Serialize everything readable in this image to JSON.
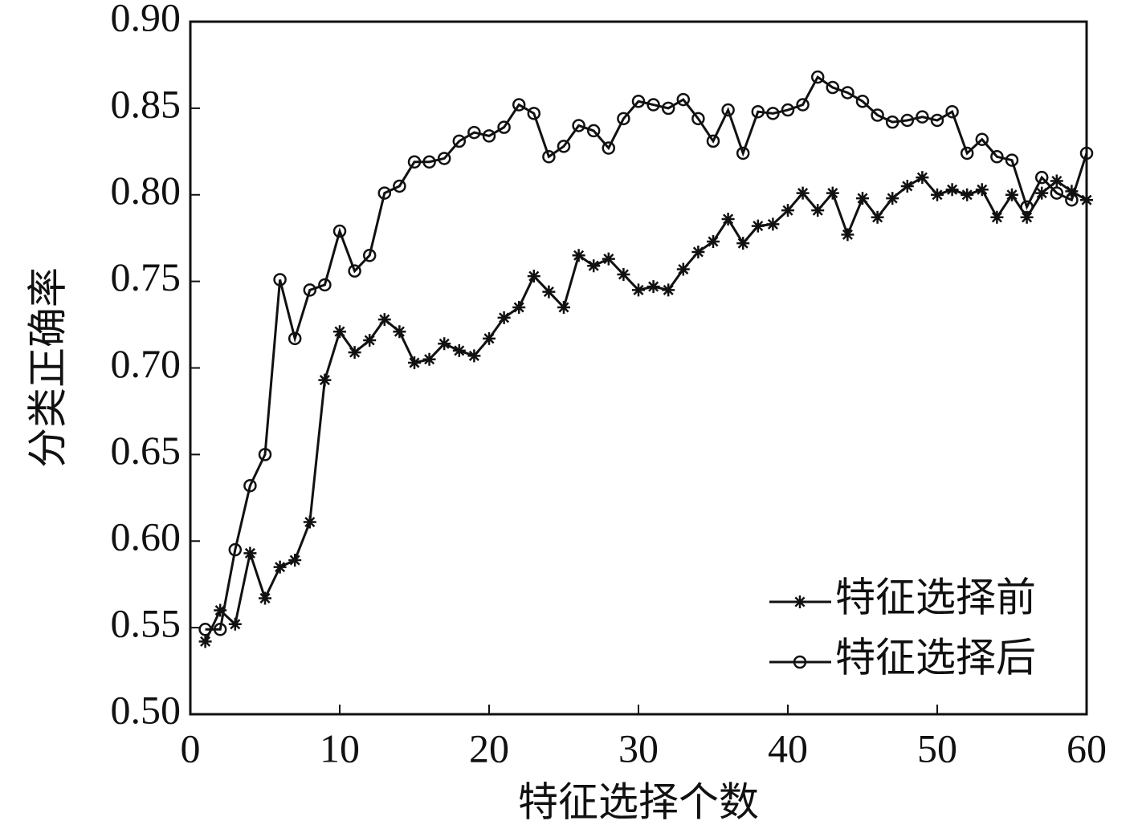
{
  "chart_data": {
    "type": "line",
    "xlabel": "特征选择个数",
    "ylabel": "分类正确率",
    "x": [
      1,
      2,
      3,
      4,
      5,
      6,
      7,
      8,
      9,
      10,
      11,
      12,
      13,
      14,
      15,
      16,
      17,
      18,
      19,
      20,
      21,
      22,
      23,
      24,
      25,
      26,
      27,
      28,
      29,
      30,
      31,
      32,
      33,
      34,
      35,
      36,
      37,
      38,
      39,
      40,
      41,
      42,
      43,
      44,
      45,
      46,
      47,
      48,
      49,
      50,
      51,
      52,
      53,
      54,
      55,
      56,
      57,
      58,
      59,
      60
    ],
    "series": [
      {
        "name": "特征选择前",
        "color": "#111111",
        "marker": "asterisk",
        "values": [
          0.542,
          0.56,
          0.552,
          0.593,
          0.567,
          0.585,
          0.589,
          0.611,
          0.693,
          0.721,
          0.709,
          0.716,
          0.728,
          0.721,
          0.703,
          0.705,
          0.714,
          0.71,
          0.707,
          0.717,
          0.729,
          0.735,
          0.753,
          0.744,
          0.735,
          0.765,
          0.759,
          0.763,
          0.754,
          0.745,
          0.747,
          0.745,
          0.757,
          0.767,
          0.773,
          0.786,
          0.772,
          0.782,
          0.783,
          0.791,
          0.801,
          0.791,
          0.801,
          0.777,
          0.798,
          0.787,
          0.798,
          0.805,
          0.81,
          0.8,
          0.803,
          0.8,
          0.803,
          0.787,
          0.8,
          0.787,
          0.801,
          0.808,
          0.802,
          0.797
        ]
      },
      {
        "name": "特征选择后",
        "color": "#111111",
        "marker": "circle",
        "values": [
          0.549,
          0.549,
          0.595,
          0.632,
          0.65,
          0.751,
          0.717,
          0.745,
          0.748,
          0.779,
          0.756,
          0.765,
          0.801,
          0.805,
          0.819,
          0.819,
          0.821,
          0.831,
          0.836,
          0.834,
          0.839,
          0.852,
          0.847,
          0.822,
          0.828,
          0.84,
          0.837,
          0.827,
          0.844,
          0.854,
          0.852,
          0.85,
          0.855,
          0.844,
          0.831,
          0.849,
          0.824,
          0.848,
          0.847,
          0.849,
          0.852,
          0.868,
          0.862,
          0.859,
          0.854,
          0.846,
          0.842,
          0.843,
          0.845,
          0.843,
          0.848,
          0.824,
          0.832,
          0.822,
          0.82,
          0.793,
          0.81,
          0.801,
          0.797,
          0.824
        ]
      }
    ],
    "xlim": [
      0,
      60
    ],
    "xticks": [
      0,
      10,
      20,
      30,
      40,
      50,
      60
    ],
    "ylim": [
      0.5,
      0.9
    ],
    "yticks": [
      {
        "value": 0.5,
        "label": "0.50"
      },
      {
        "value": 0.55,
        "label": "0.55"
      },
      {
        "value": 0.6,
        "label": "0.60"
      },
      {
        "value": 0.65,
        "label": "0.65"
      },
      {
        "value": 0.7,
        "label": "0.70"
      },
      {
        "value": 0.75,
        "label": "0.75"
      },
      {
        "value": 0.8,
        "label": "0.80"
      },
      {
        "value": 0.85,
        "label": "0.85"
      },
      {
        "value": 0.9,
        "label": "0.90"
      }
    ],
    "grid": false,
    "legend": "lower right"
  }
}
